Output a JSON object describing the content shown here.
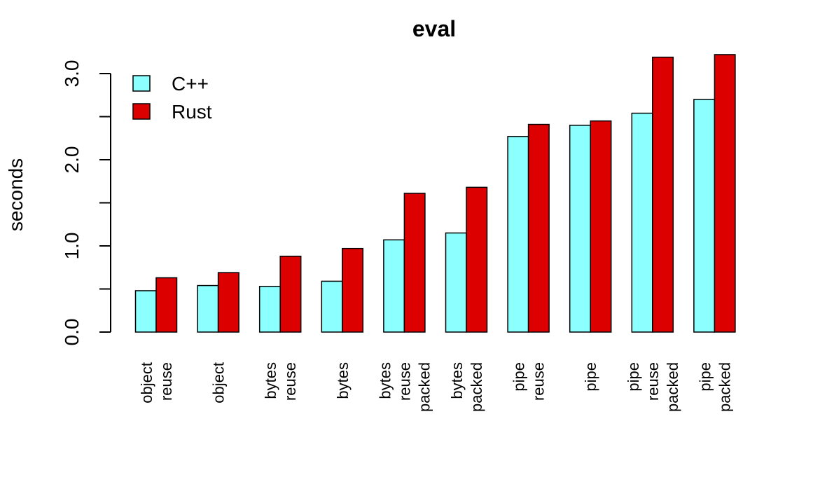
{
  "chart_data": {
    "type": "bar",
    "title": "eval",
    "xlabel": "",
    "ylabel": "seconds",
    "ylim": [
      0,
      3.2
    ],
    "yticks": [
      0.0,
      0.5,
      1.0,
      1.5,
      2.0,
      2.5,
      3.0
    ],
    "ytick_labels": [
      "0.0",
      "1.0",
      "2.0",
      "3.0"
    ],
    "grid": false,
    "legend_position": "top-left",
    "categories": [
      [
        "object",
        "reuse"
      ],
      [
        "object"
      ],
      [
        "bytes",
        "reuse"
      ],
      [
        "bytes"
      ],
      [
        "bytes",
        "reuse",
        "packed"
      ],
      [
        "bytes",
        "packed"
      ],
      [
        "pipe",
        "reuse"
      ],
      [
        "pipe"
      ],
      [
        "pipe",
        "reuse",
        "packed"
      ],
      [
        "pipe",
        "packed"
      ]
    ],
    "series": [
      {
        "name": "C++",
        "color": "#8cffff",
        "values": [
          0.48,
          0.54,
          0.53,
          0.59,
          1.07,
          1.15,
          2.27,
          2.4,
          2.54,
          2.7
        ]
      },
      {
        "name": "Rust",
        "color": "#dd0000",
        "values": [
          0.63,
          0.69,
          0.88,
          0.97,
          1.61,
          1.68,
          2.41,
          2.45,
          3.19,
          3.22
        ]
      }
    ]
  }
}
